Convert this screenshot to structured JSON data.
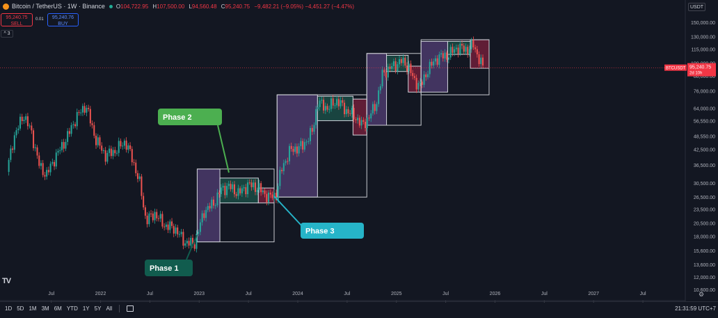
{
  "header": {
    "symbol": "Bitcoin / TetherUS · 1W · Binance",
    "ohlc": [
      {
        "key": "O",
        "value": "104,722.95"
      },
      {
        "key": "H",
        "value": "107,500.00"
      },
      {
        "key": "L",
        "value": "94,560.48"
      },
      {
        "key": "C",
        "value": "95,240.75"
      }
    ],
    "change": "−9,482.21 (−9.05%)",
    "change2": "−4,451.27 (−4.47%)",
    "sell_price": "95,240.75",
    "sell_label": "SELL",
    "spread": "0.01",
    "buy_price": "95,240.76",
    "buy_label": "BUY",
    "collapse": "^ 3",
    "currency": "USDT"
  },
  "colors": {
    "background": "#131722",
    "up": "#26a69a",
    "down": "#ef5350",
    "price_line": "#f23645",
    "phase1": "#115c4e",
    "phase2": "#4caf50",
    "phase3": "#26b4c8",
    "rise_box": "#6a4c93",
    "range_box": "#1f6a5a",
    "drop_box": "#a02347"
  },
  "price_tag": {
    "symbol": "BTCUSDT",
    "price": "95,240.75",
    "countdown": "2d 10h"
  },
  "bottom": {
    "ranges": [
      "1D",
      "5D",
      "1M",
      "3M",
      "6M",
      "YTD",
      "1Y",
      "5Y",
      "All"
    ],
    "clock": "21:31:59 UTC+7"
  },
  "chart_data": {
    "type": "candlestick",
    "scale": "log",
    "x_ticks": [
      {
        "label": "Jul",
        "t": 2021.5
      },
      {
        "label": "2022",
        "t": 2022.0
      },
      {
        "label": "Jul",
        "t": 2022.5
      },
      {
        "label": "2023",
        "t": 2023.0
      },
      {
        "label": "Jul",
        "t": 2023.5
      },
      {
        "label": "2024",
        "t": 2024.0
      },
      {
        "label": "Jul",
        "t": 2024.5
      },
      {
        "label": "2025",
        "t": 2025.0
      },
      {
        "label": "Jul",
        "t": 2025.5
      },
      {
        "label": "2026",
        "t": 2026.0
      },
      {
        "label": "Jul",
        "t": 2026.5
      },
      {
        "label": "2027",
        "t": 2027.0
      },
      {
        "label": "Jul",
        "t": 2027.5
      }
    ],
    "y_ticks": [
      150000,
      130000,
      115000,
      100000,
      88000,
      76000,
      64000,
      56550,
      48550,
      42500,
      36500,
      30500,
      26500,
      23500,
      20500,
      18000,
      15600,
      13600,
      12000,
      10600
    ],
    "ylim": [
      9500,
      165000
    ],
    "last_price": 95240.75,
    "price_path": [
      [
        2021.05,
        34000
      ],
      [
        2021.12,
        48000
      ],
      [
        2021.22,
        60000
      ],
      [
        2021.3,
        50000
      ],
      [
        2021.38,
        36000
      ],
      [
        2021.45,
        33000
      ],
      [
        2021.55,
        40000
      ],
      [
        2021.65,
        47000
      ],
      [
        2021.75,
        58000
      ],
      [
        2021.85,
        66000
      ],
      [
        2021.95,
        47000
      ],
      [
        2022.05,
        40000
      ],
      [
        2022.15,
        42000
      ],
      [
        2022.25,
        46000
      ],
      [
        2022.32,
        39000
      ],
      [
        2022.4,
        30000
      ],
      [
        2022.46,
        21000
      ],
      [
        2022.55,
        22500
      ],
      [
        2022.65,
        20000
      ],
      [
        2022.75,
        19500
      ],
      [
        2022.85,
        17000
      ],
      [
        2022.95,
        16600
      ],
      [
        2023.05,
        23000
      ],
      [
        2023.15,
        25000
      ],
      [
        2023.22,
        28500
      ],
      [
        2023.3,
        29500
      ],
      [
        2023.4,
        27500
      ],
      [
        2023.5,
        30000
      ],
      [
        2023.6,
        29000
      ],
      [
        2023.7,
        26500
      ],
      [
        2023.78,
        27000
      ],
      [
        2023.83,
        34500
      ],
      [
        2023.92,
        42000
      ],
      [
        2024.05,
        44000
      ],
      [
        2024.15,
        51000
      ],
      [
        2024.2,
        68000
      ],
      [
        2024.3,
        64000
      ],
      [
        2024.4,
        69000
      ],
      [
        2024.5,
        62000
      ],
      [
        2024.58,
        59000
      ],
      [
        2024.65,
        54000
      ],
      [
        2024.72,
        58000
      ],
      [
        2024.8,
        68000
      ],
      [
        2024.86,
        90000
      ],
      [
        2024.95,
        96000
      ],
      [
        2025.05,
        102000
      ],
      [
        2025.12,
        97000
      ],
      [
        2025.18,
        84000
      ],
      [
        2025.25,
        80000
      ],
      [
        2025.32,
        94000
      ],
      [
        2025.42,
        106000
      ],
      [
        2025.52,
        108000
      ],
      [
        2025.62,
        117000
      ],
      [
        2025.72,
        114000
      ],
      [
        2025.78,
        120000
      ],
      [
        2025.84,
        104000
      ],
      [
        2025.88,
        95240
      ]
    ],
    "annotations": [
      {
        "text": "Phase 1"
      },
      {
        "text": "Phase 2"
      },
      {
        "text": "Phase 3"
      }
    ],
    "phase_boxes": [
      {
        "kind": "rise",
        "t0": 2022.98,
        "t1": 2023.21,
        "p0": 17000,
        "p1": 35000
      },
      {
        "kind": "range",
        "t0": 2023.21,
        "t1": 2023.6,
        "p0": 25000,
        "p1": 32000
      },
      {
        "kind": "drop",
        "t0": 2023.6,
        "t1": 2023.76,
        "p0": 25000,
        "p1": 29000
      },
      {
        "kind": "outline",
        "t0": 2022.98,
        "t1": 2023.76,
        "p0": 17000,
        "p1": 35000
      },
      {
        "kind": "rise",
        "t0": 2023.79,
        "t1": 2024.2,
        "p0": 26500,
        "p1": 73000
      },
      {
        "kind": "range",
        "t0": 2024.2,
        "t1": 2024.56,
        "p0": 56500,
        "p1": 72000
      },
      {
        "kind": "drop",
        "t0": 2024.56,
        "t1": 2024.7,
        "p0": 49000,
        "p1": 70000
      },
      {
        "kind": "outline",
        "t0": 2023.79,
        "t1": 2024.7,
        "p0": 26500,
        "p1": 73000
      },
      {
        "kind": "rise",
        "t0": 2024.7,
        "t1": 2024.9,
        "p0": 54000,
        "p1": 110000
      },
      {
        "kind": "range",
        "t0": 2024.9,
        "t1": 2025.12,
        "p0": 92000,
        "p1": 108000
      },
      {
        "kind": "drop",
        "t0": 2025.12,
        "t1": 2025.25,
        "p0": 75000,
        "p1": 97000
      },
      {
        "kind": "outline",
        "t0": 2024.7,
        "t1": 2025.25,
        "p0": 54000,
        "p1": 110000
      },
      {
        "kind": "rise",
        "t0": 2025.25,
        "t1": 2025.52,
        "p0": 75000,
        "p1": 124000
      },
      {
        "kind": "range",
        "t0": 2025.52,
        "t1": 2025.75,
        "p0": 109000,
        "p1": 124000
      },
      {
        "kind": "drop",
        "t0": 2025.75,
        "t1": 2025.94,
        "p0": 95000,
        "p1": 126000
      },
      {
        "kind": "outline",
        "t0": 2025.25,
        "t1": 2025.94,
        "p0": 73000,
        "p1": 126000
      }
    ]
  }
}
